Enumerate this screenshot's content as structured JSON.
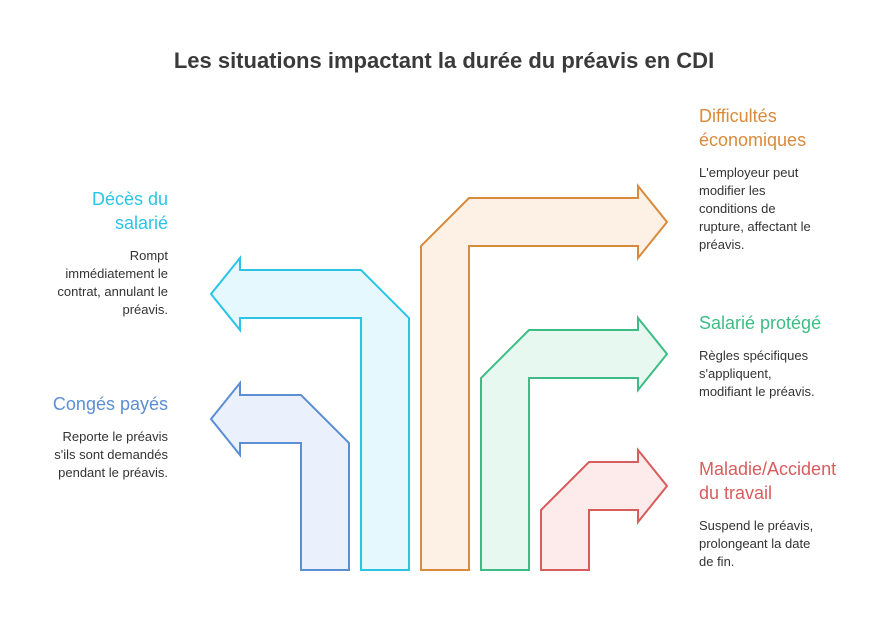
{
  "title": "Les situations impactant la durée du préavis en CDI",
  "colors": {
    "conges": "#5b8ed3",
    "deces": "#2cc4e6",
    "difficultes": "#d98a3a",
    "protege": "#3dbd85",
    "maladie": "#d95c5c"
  },
  "situations": {
    "deces": {
      "title_l1": "Décès du",
      "title_l2": "salarié",
      "desc_l1": "Rompt",
      "desc_l2": "immédiatement le",
      "desc_l3": "contrat, annulant le",
      "desc_l4": "préavis."
    },
    "conges": {
      "title": "Congés payés",
      "desc_l1": "Reporte le préavis",
      "desc_l2": "s'ils sont demandés",
      "desc_l3": "pendant le préavis."
    },
    "difficultes": {
      "title_l1": "Difficultés",
      "title_l2": "économiques",
      "desc_l1": "L'employeur peut",
      "desc_l2": "modifier les",
      "desc_l3": "conditions de",
      "desc_l4": "rupture, affectant le",
      "desc_l5": "préavis."
    },
    "protege": {
      "title": "Salarié protégé",
      "desc_l1": "Règles spécifiques",
      "desc_l2": "s'appliquent,",
      "desc_l3": "modifiant le préavis."
    },
    "maladie": {
      "title_l1": "Maladie/Accident",
      "title_l2": "du travail",
      "desc_l1": "Suspend le préavis,",
      "desc_l2": "prolongeant la date",
      "desc_l3": "de fin."
    }
  }
}
